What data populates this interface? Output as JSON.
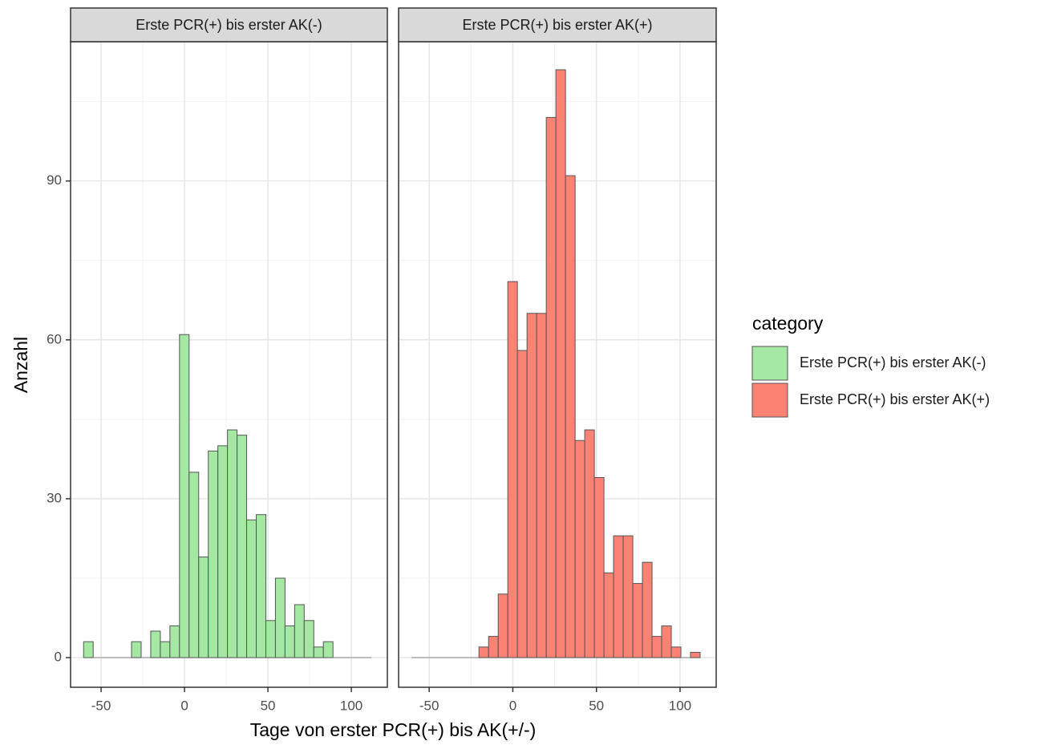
{
  "chart_data": {
    "type": "histogram",
    "x_label": "Tage von erster PCR(+) bis AK(+/-)",
    "y_label": "Anzahl",
    "legend_title": "category",
    "bins": [
      -60.5,
      -54.75,
      -49,
      -43.25,
      -37.5,
      -31.75,
      -26,
      -20.25,
      -14.5,
      -8.75,
      -3,
      2.75,
      8.5,
      14.25,
      20,
      25.75,
      31.5,
      37.25,
      43,
      48.75,
      54.5,
      60.25,
      66,
      71.75,
      77.5,
      83.25,
      89,
      94.75,
      100.5,
      106.25,
      112
    ],
    "series": [
      {
        "name": "Erste PCR(+) bis erster AK(-)",
        "color": "#a4e8a4",
        "values": [
          3,
          0,
          0,
          0,
          0,
          3,
          0,
          5,
          3,
          6,
          61,
          35,
          19,
          39,
          40,
          43,
          42,
          26,
          27,
          7,
          15,
          6,
          10,
          7,
          2,
          3,
          0,
          0,
          0,
          0
        ]
      },
      {
        "name": "Erste PCR(+) bis erster AK(+)",
        "color": "#fc8374",
        "values": [
          0,
          0,
          0,
          0,
          0,
          0,
          0,
          2,
          4,
          12,
          71,
          58,
          65,
          65,
          102,
          111,
          91,
          41,
          43,
          34,
          16,
          23,
          23,
          14,
          18,
          4,
          6,
          2,
          0,
          1
        ]
      }
    ],
    "xlim": [
      -68.3,
      121.6
    ],
    "xticks": [
      -50,
      0,
      50,
      100
    ],
    "ylim": [
      -5.6,
      116.3
    ],
    "yticks": [
      0,
      30,
      60,
      90
    ],
    "grid": true,
    "legend": "right"
  }
}
